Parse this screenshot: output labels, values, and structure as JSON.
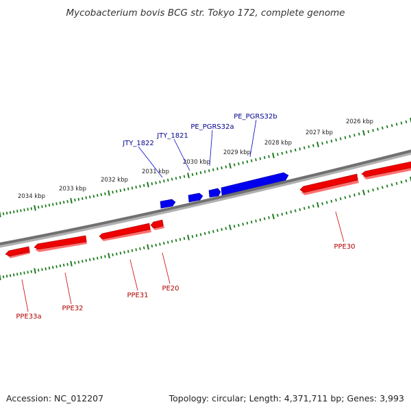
{
  "title": "Mycobacterium bovis BCG str. Tokyo 172, complete genome",
  "footer": {
    "accession": "Accession: NC_012207",
    "summary": "Topology: circular; Length: 4,371,711 bp; Genes: 3,993"
  },
  "colors": {
    "forward_strand": "#0000ee",
    "reverse_strand": "#ee0000",
    "backbone": "#808080",
    "ticks": "#1a7a1a",
    "forward_label": "#00008b",
    "reverse_label": "#b00000"
  },
  "ticks": [
    "2034 kbp",
    "2033 kbp",
    "2032 kbp",
    "2031 kbp",
    "2030 kbp",
    "2029 kbp",
    "2028 kbp",
    "2027 kbp",
    "2026 kbp"
  ],
  "forward_genes": [
    "JTY_1822",
    "JTY_1821",
    "PE_PGRS32a",
    "PE_PGRS32b"
  ],
  "reverse_genes": [
    "PPE33a",
    "PPE32",
    "PPE31",
    "PE20",
    "PPE30"
  ]
}
